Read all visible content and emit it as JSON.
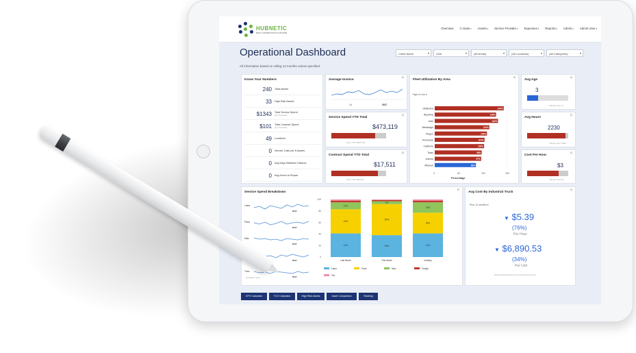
{
  "brand": {
    "logo_text": "HUBNETIC",
    "logo_sub": "BEST CONNECTED PLATFORM"
  },
  "nav": [
    "Overview",
    "C-Suite",
    "Assets",
    "Service Provider",
    "Expenses",
    "Reports",
    "Admin",
    "Admin User"
  ],
  "page": {
    "title": "Operational Dashboard",
    "subtitle": "All information based on rolling 12 months unless specified"
  },
  "filters": [
    "Client Name",
    "USA",
    "(All Areas)",
    "(All Locations)",
    "(All Categories)"
  ],
  "know_your_numbers": {
    "title": "Know Your Numbers",
    "rows": [
      {
        "value": "240",
        "label": "Total Assets",
        "note": ""
      },
      {
        "value": "33",
        "label": "High Risk Assets",
        "note": ""
      },
      {
        "value": "$1343",
        "label": "Total Service Spend",
        "note": "(k) in thousands"
      },
      {
        "value": "$101",
        "label": "Total Contract Spend",
        "note": "(k) in thousands"
      },
      {
        "value": "49",
        "label": "Locations",
        "note": ""
      },
      {
        "value": "0",
        "label": "Service Calls per 8 Assets",
        "note": ""
      },
      {
        "value": "0",
        "label": "Avg Days Between Failures",
        "note": ""
      },
      {
        "value": "0",
        "label": "Avg Hours to Repair",
        "note": ""
      }
    ]
  },
  "average_invoice": {
    "title": "Average Invoice",
    "x_labels": [
      "Jul",
      "2017"
    ]
  },
  "service_spend_ytd": {
    "title": "Service Spend YTD Total",
    "value": "$473,119",
    "prior": "Prior YTD: $357,070",
    "fill": 0.8
  },
  "contract_spend_ytd": {
    "title": "Contract Spend YTD Total",
    "value": "$17,511",
    "prior": "Prior YTD: $20,527",
    "fill": 0.85
  },
  "fleet_utilization": {
    "title": "Fleet Utilization By Area",
    "control": "High to Low",
    "xlabel": "Percentage",
    "ticks": [
      "0",
      "50",
      "100",
      "150"
    ],
    "states": [
      {
        "name": "Oklahoma",
        "value": 144,
        "label": "144%"
      },
      {
        "name": "Wyoming",
        "value": 128,
        "label": "128%"
      },
      {
        "name": "Utah",
        "value": 132,
        "label": "132%"
      },
      {
        "name": "Mississippi",
        "value": 114,
        "label": "114%"
      },
      {
        "name": "Oregon",
        "value": 109,
        "label": "109%"
      },
      {
        "name": "Tennessee",
        "value": 104,
        "label": "104%"
      },
      {
        "name": "California",
        "value": 103,
        "label": "103%"
      },
      {
        "name": "Texas",
        "value": 98,
        "label": "98%"
      },
      {
        "name": "Arizona",
        "value": 97,
        "label": "97%"
      },
      {
        "name": "Missouri",
        "value": 86,
        "label": "86%"
      }
    ]
  },
  "avg_age": {
    "title": "Avg Age",
    "value": "3",
    "note": "Industry Avg: 11",
    "fill": 0.27
  },
  "avg_hours": {
    "title": "Avg Hours",
    "value": "2230",
    "note": "Industry Avg: 2500"
  },
  "cost_per_hour": {
    "title": "Cost Per Hour",
    "value": "$3",
    "note": "Industry Avg: $4"
  },
  "service_spend_breakdown": {
    "title": "Service Spend Breakdown",
    "sparkline_labels": [
      "Labor",
      "Parts",
      "Misc",
      "Freight",
      "Tires"
    ],
    "footnote": "by Month Trend",
    "year": "2017",
    "y_ticks": [
      "100",
      "80",
      "60",
      "40",
      "20",
      "0"
    ],
    "columns": [
      {
        "label": "Last Month",
        "labor": 41,
        "parts": 42,
        "misc": 12,
        "freight": 3,
        "tires": 2
      },
      {
        "label": "This Month",
        "labor": 38,
        "parts": 54,
        "misc": 5,
        "freight": 2,
        "tires": 1
      },
      {
        "label": "Industry",
        "labor": 41,
        "parts": 36,
        "misc": 18,
        "freight": 3,
        "tires": 2
      }
    ],
    "legend": [
      "Labor",
      "Parts",
      "Misc",
      "Freight",
      "Tire"
    ],
    "colors": {
      "labor": "#5bb3e0",
      "parts": "#f7d000",
      "misc": "#8fc55b",
      "freight": "#c0392b",
      "tires": "#f08fb0"
    }
  },
  "avg_cost_truck": {
    "title": "Avg Cost By Industrial Truck",
    "control": "Prior 12 months",
    "per_hour_value": "$5.39",
    "per_hour_pct": "(76%)",
    "per_hour_label": "Per Hour",
    "per_unit_value": "$6,890.53",
    "per_unit_pct": "(34%)",
    "per_unit_label": "Per Unit",
    "note": "Data represented sums at previous full month"
  },
  "buttons": [
    "CPH Calculator",
    "TCO Calculator",
    "High Risk Assets",
    "Asset Comparison",
    "Ranking"
  ]
}
